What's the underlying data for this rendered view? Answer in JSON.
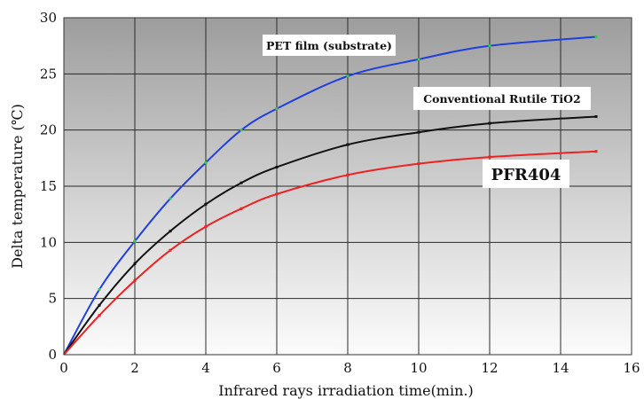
{
  "chart_data": {
    "type": "line",
    "title": "",
    "xlabel": "Infrared rays irradiation time(min.)",
    "ylabel": "Delta temperature (℃)",
    "xlim": [
      0,
      16
    ],
    "ylim": [
      0,
      30
    ],
    "x_ticks": [
      0,
      2,
      4,
      6,
      8,
      10,
      12,
      14,
      16
    ],
    "y_ticks": [
      0,
      5,
      10,
      15,
      20,
      25,
      30
    ],
    "grid": true,
    "legend": "none",
    "colors": {
      "blue": "#1f3fe0",
      "black": "#111111",
      "red": "#ee2222",
      "marker": "#2ecc40"
    },
    "series": [
      {
        "name": "PET film (substrate)",
        "color": "#1f3fe0",
        "x": [
          0,
          1,
          2,
          3,
          4,
          5,
          6,
          8,
          10,
          12,
          15
        ],
        "y": [
          0,
          5.8,
          10.1,
          13.9,
          17.1,
          20.0,
          21.9,
          24.8,
          26.3,
          27.5,
          28.3
        ]
      },
      {
        "name": "Conventional Rutile TiO2",
        "color": "#111111",
        "x": [
          0,
          1,
          2,
          3,
          4,
          5,
          6,
          8,
          10,
          12,
          15
        ],
        "y": [
          0,
          4.4,
          8.1,
          11.0,
          13.4,
          15.3,
          16.7,
          18.7,
          19.8,
          20.6,
          21.2
        ]
      },
      {
        "name": "PFR404",
        "color": "#ee2222",
        "x": [
          0,
          1,
          2,
          3,
          4,
          5,
          6,
          8,
          10,
          12,
          15
        ],
        "y": [
          0,
          3.5,
          6.6,
          9.3,
          11.4,
          13.0,
          14.3,
          16.0,
          17.0,
          17.6,
          18.1
        ]
      }
    ],
    "annotations": [
      {
        "text": "PET film (substrate)",
        "series": 0
      },
      {
        "text": "Conventional Rutile TiO2",
        "series": 1
      },
      {
        "text": "PFR404",
        "series": 2
      }
    ]
  }
}
